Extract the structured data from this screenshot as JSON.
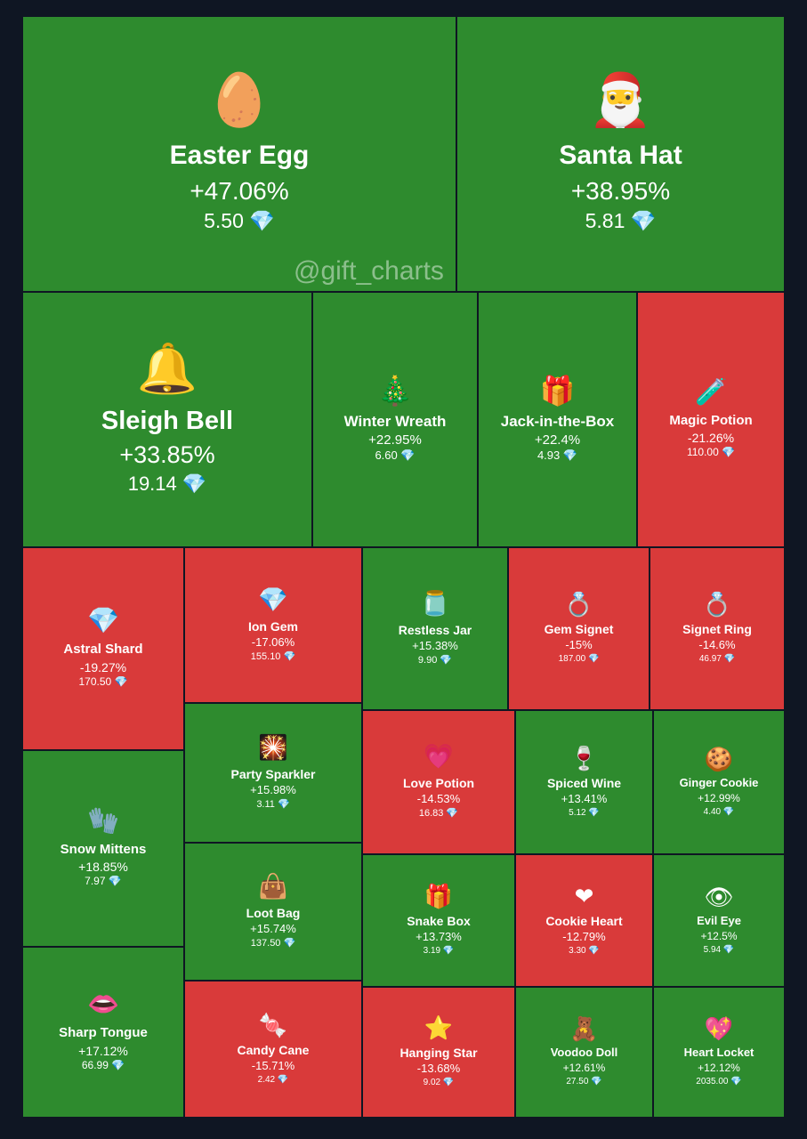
{
  "watermark": "@gift_charts",
  "colors": {
    "up": "#2e8b2e",
    "down": "#d93a3a",
    "background": "#0f1623",
    "gem": "#6fd3ff"
  },
  "chart_data": {
    "type": "treemap",
    "gem_icon": "diamond-icon",
    "items": [
      {
        "name": "Easter Egg",
        "change": "+47.06%",
        "change_value": 47.06,
        "price": "5.50",
        "icon": "easter-egg-icon",
        "glyph": "🥚"
      },
      {
        "name": "Santa Hat",
        "change": "+38.95%",
        "change_value": 38.95,
        "price": "5.81",
        "icon": "santa-hat-icon",
        "glyph": "🎅"
      },
      {
        "name": "Sleigh Bell",
        "change": "+33.85%",
        "change_value": 33.85,
        "price": "19.14",
        "icon": "bell-icon",
        "glyph": "🔔"
      },
      {
        "name": "Winter Wreath",
        "change": "+22.95%",
        "change_value": 22.95,
        "price": "6.60",
        "icon": "wreath-icon",
        "glyph": "🎄"
      },
      {
        "name": "Jack-in-the-Box",
        "change": "+22.4%",
        "change_value": 22.4,
        "price": "4.93",
        "icon": "jack-in-the-box-icon",
        "glyph": "🎁"
      },
      {
        "name": "Magic Potion",
        "change": "-21.26%",
        "change_value": -21.26,
        "price": "110.00",
        "icon": "potion-icon",
        "glyph": "🧪"
      },
      {
        "name": "Astral Shard",
        "change": "-19.27%",
        "change_value": -19.27,
        "price": "170.50",
        "icon": "crystal-icon",
        "glyph": "💎"
      },
      {
        "name": "Ion Gem",
        "change": "-17.06%",
        "change_value": -17.06,
        "price": "155.10",
        "icon": "gem-icon",
        "glyph": "💎"
      },
      {
        "name": "Restless Jar",
        "change": "+15.38%",
        "change_value": 15.38,
        "price": "9.90",
        "icon": "jar-icon",
        "glyph": "🫙"
      },
      {
        "name": "Gem Signet",
        "change": "-15%",
        "change_value": -15,
        "price": "187.00",
        "icon": "ring-icon",
        "glyph": "💍"
      },
      {
        "name": "Signet Ring",
        "change": "-14.6%",
        "change_value": -14.6,
        "price": "46.97",
        "icon": "gold-ring-icon",
        "glyph": "💍"
      },
      {
        "name": "Snow Mittens",
        "change": "+18.85%",
        "change_value": 18.85,
        "price": "7.97",
        "icon": "mittens-icon",
        "glyph": "🧤"
      },
      {
        "name": "Party Sparkler",
        "change": "+15.98%",
        "change_value": 15.98,
        "price": "3.11",
        "icon": "sparkler-icon",
        "glyph": "🎇"
      },
      {
        "name": "Love Potion",
        "change": "-14.53%",
        "change_value": -14.53,
        "price": "16.83",
        "icon": "love-potion-icon",
        "glyph": "💗"
      },
      {
        "name": "Spiced Wine",
        "change": "+13.41%",
        "change_value": 13.41,
        "price": "5.12",
        "icon": "wine-icon",
        "glyph": "🍷"
      },
      {
        "name": "Ginger Cookie",
        "change": "+12.99%",
        "change_value": 12.99,
        "price": "4.40",
        "icon": "gingerbread-icon",
        "glyph": "🍪"
      },
      {
        "name": "Loot Bag",
        "change": "+15.74%",
        "change_value": 15.74,
        "price": "137.50",
        "icon": "bag-icon",
        "glyph": "👜"
      },
      {
        "name": "Snake Box",
        "change": "+13.73%",
        "change_value": 13.73,
        "price": "3.19",
        "icon": "gift-box-icon",
        "glyph": "🎁"
      },
      {
        "name": "Cookie Heart",
        "change": "-12.79%",
        "change_value": -12.79,
        "price": "3.30",
        "icon": "heart-cookie-icon",
        "glyph": "❤"
      },
      {
        "name": "Evil Eye",
        "change": "+12.5%",
        "change_value": 12.5,
        "price": "5.94",
        "icon": "eye-icon",
        "glyph": "👁"
      },
      {
        "name": "Sharp Tongue",
        "change": "+17.12%",
        "change_value": 17.12,
        "price": "66.99",
        "icon": "lips-icon",
        "glyph": "👄"
      },
      {
        "name": "Candy Cane",
        "change": "-15.71%",
        "change_value": -15.71,
        "price": "2.42",
        "icon": "candy-cane-icon",
        "glyph": "🍬"
      },
      {
        "name": "Hanging Star",
        "change": "-13.68%",
        "change_value": -13.68,
        "price": "9.02",
        "icon": "star-icon",
        "glyph": "⭐"
      },
      {
        "name": "Voodoo Doll",
        "change": "+12.61%",
        "change_value": 12.61,
        "price": "27.50",
        "icon": "doll-icon",
        "glyph": "🧸"
      },
      {
        "name": "Heart Locket",
        "change": "+12.12%",
        "change_value": 12.12,
        "price": "2035.00",
        "icon": "locket-icon",
        "glyph": "💖"
      }
    ]
  }
}
